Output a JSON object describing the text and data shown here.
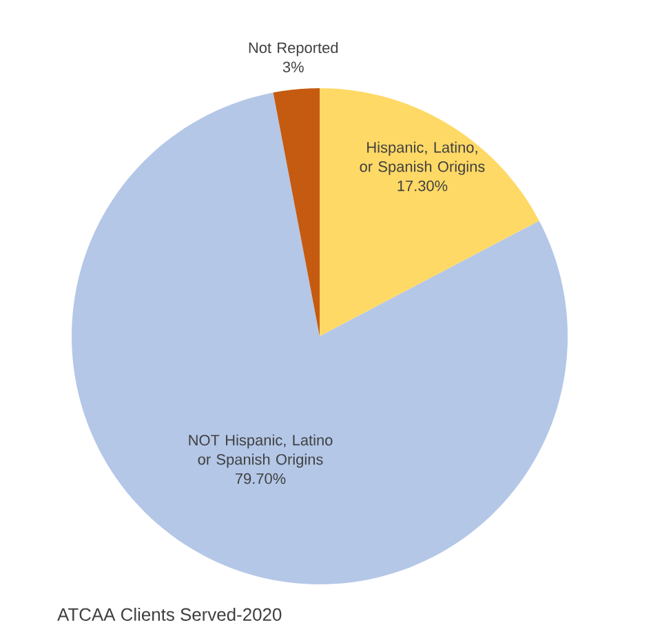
{
  "chart_data": {
    "type": "pie",
    "title": "ATCAA Clients Served-2020",
    "categories": [
      "Hispanic, Latino, or Spanish Origins",
      "NOT Hispanic, Latino or Spanish Origins",
      "Not Reported"
    ],
    "values": [
      17.3,
      79.7,
      3
    ],
    "value_labels": [
      "17.30%",
      "79.70%",
      "3%"
    ],
    "colors": [
      "#ffd966",
      "#b4c7e7",
      "#c55a11"
    ],
    "legend": false
  }
}
